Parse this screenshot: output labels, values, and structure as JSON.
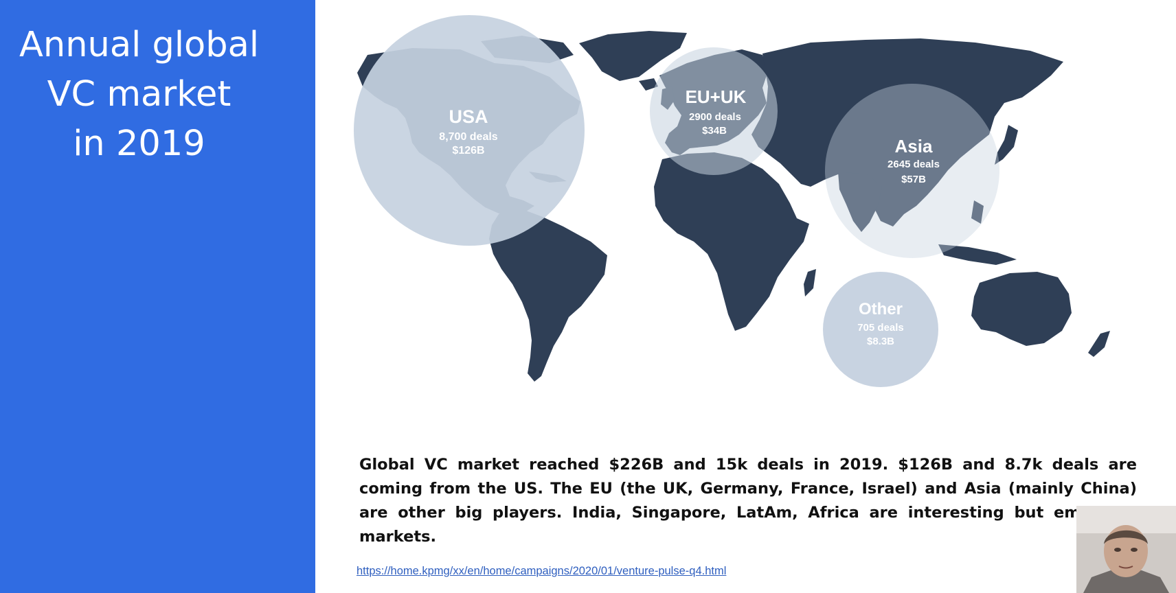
{
  "slide": {
    "title_lines": [
      "Annual global",
      "VC market",
      "in 2019"
    ],
    "summary": "Global VC market reached $226B and 15k deals in 2019. $126B and 8.7k deals are coming from the US. The EU (the UK, Germany, France, Israel) and Asia (mainly China) are other big players. India, Singapore, LatAm, Africa are interesting but emerging markets.",
    "source_url": "https://home.kpmg/xx/en/home/campaigns/2020/01/venture-pulse-q4.html"
  },
  "map": {
    "land_color": "#2f3f56",
    "bubble_color": "#c5d1df",
    "regions": [
      {
        "name": "USA",
        "deals": "8,700 deals",
        "amount": "$126B"
      },
      {
        "name": "EU+UK",
        "deals": "2900 deals",
        "amount": "$34B"
      },
      {
        "name": "Asia",
        "deals": "2645 deals",
        "amount": "$57B"
      },
      {
        "name": "Other",
        "deals": "705 deals",
        "amount": "$8.3B"
      }
    ]
  },
  "colors": {
    "sidebar": "#306ce2",
    "title_text": "#ffffff",
    "link": "#2f5fbf"
  },
  "webcam": {
    "icon": "person-icon"
  }
}
